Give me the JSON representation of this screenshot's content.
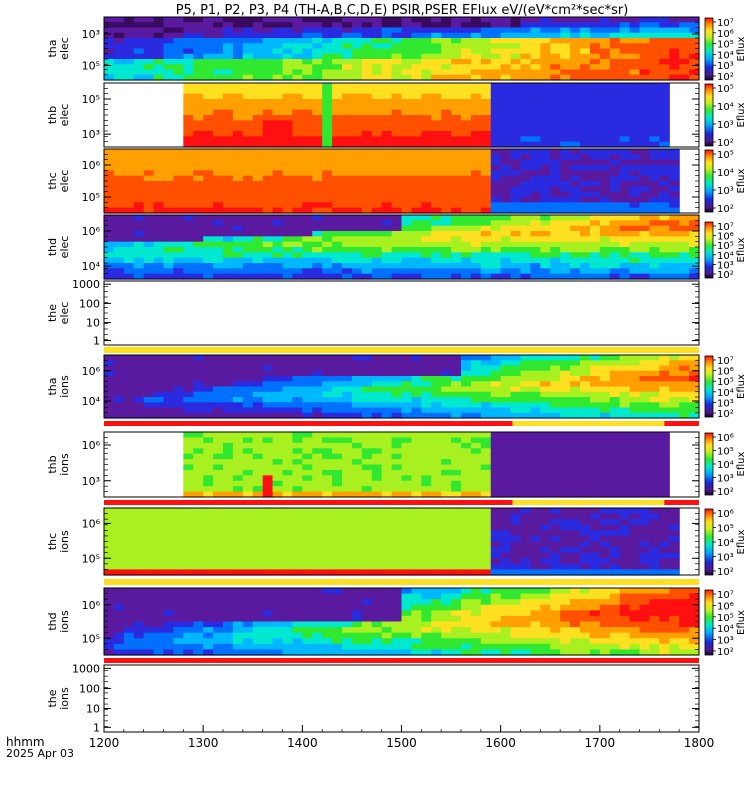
{
  "title": "P5, P1, P2, P3, P4 (TH-A,B,C,D,E) PSIR,PSER EFlux eV/(eV*cm²*sec*sr)",
  "xaxis": {
    "labels_left": [
      "hhmm",
      "2025 Apr 03"
    ],
    "ticks": [
      1200,
      1300,
      1400,
      1500,
      1600,
      1700,
      1800
    ]
  },
  "colorbar_label": "Eflux",
  "chart_data": {
    "type": "heatmap",
    "title": "P5, P1, P2, P3, P4 (TH-A,B,C,D,E) PSIR,PSER EFlux eV/(eV*cm²*sec*sr)",
    "xlabel": "hhmm  2025 Apr 03",
    "xlim": [
      1200,
      1800
    ],
    "xticks": [
      "1200",
      "1300",
      "1400",
      "1500",
      "1600",
      "1700",
      "1800"
    ],
    "panels": [
      {
        "name": "tha elec",
        "label": [
          "tha",
          "elec"
        ],
        "yticks": [
          "10³",
          "10⁵"
        ],
        "cbar": [
          "10⁷",
          "10⁶",
          "10⁵",
          "10⁴",
          "10³",
          "10²"
        ],
        "data": true,
        "note": "low flux (purple/blue) at start, green-yellow rising to orange/red 1680-1790"
      },
      {
        "name": "thb elec",
        "label": [
          "thb",
          "elec"
        ],
        "yticks": [
          "10⁵",
          "10³"
        ],
        "cbar": [
          "10⁵",
          "10⁴",
          "10³",
          "10²"
        ],
        "data": true,
        "note": "no data 1200-1280; yellow/orange/red 1280-1590; purple/blue 1595-1765"
      },
      {
        "name": "thc elec",
        "label": [
          "thc",
          "elec"
        ],
        "yticks": [
          "10⁶",
          "10⁵"
        ],
        "cbar": [
          "10⁵",
          "10⁴",
          "10³",
          "10²"
        ],
        "data": true,
        "note": "yellow/orange/red 1200-1595; purple/blue 1600-1775"
      },
      {
        "name": "thd elec",
        "label": [
          "thd",
          "elec"
        ],
        "yticks": [
          "10⁶",
          "10⁴"
        ],
        "cbar": [
          "10⁷",
          "10⁶",
          "10⁵",
          "10⁴",
          "10³",
          "10²"
        ],
        "data": true,
        "note": "purple/blue background, green-cyan band rising, orange/red near 1780-1800"
      },
      {
        "name": "the elec",
        "label": [
          "the",
          "elec"
        ],
        "yticks": [
          "1000",
          "100",
          "10",
          "1"
        ],
        "cbar": [],
        "data": false
      },
      {
        "name": "tha ions",
        "label": [
          "tha",
          "ions"
        ],
        "yticks": [
          "10⁶",
          "10⁴"
        ],
        "cbar": [
          "10⁷",
          "10⁶",
          "10⁵",
          "10⁴",
          "10³",
          "10²"
        ],
        "data": true,
        "note": "purple at start, blue/cyan rising, green/yellow/orange 1660-1780"
      },
      {
        "name": "thb ions",
        "label": [
          "thb",
          "ions"
        ],
        "yticks": [
          "10⁶",
          "10³"
        ],
        "cbar": [
          "10⁶",
          "10⁵",
          "10⁴",
          "10³",
          "10²"
        ],
        "data": true,
        "note": "no data 1200-1280; green 1280-1590 with red/yellow bin near 1360; purple 1595-1765"
      },
      {
        "name": "thc ions",
        "label": [
          "thc",
          "ions"
        ],
        "yticks": [
          "10⁶",
          "10⁵"
        ],
        "cbar": [
          "10⁶",
          "10⁵",
          "10⁴",
          "10³",
          "10²"
        ],
        "data": true,
        "note": "light green 1200-1595 with orange/red low energy; purple 1600-1775"
      },
      {
        "name": "thd ions",
        "label": [
          "thd",
          "ions"
        ],
        "yticks": [
          "10⁶",
          "10⁵"
        ],
        "cbar": [
          "10⁷",
          "10⁶",
          "10⁵",
          "10⁴",
          "10³",
          "10²"
        ],
        "data": true,
        "note": "purple background, blue/cyan rising, green/yellow/orange/red 1700-1800"
      },
      {
        "name": "the ions",
        "label": [
          "the",
          "ions"
        ],
        "yticks": [
          "1000",
          "100",
          "10",
          "1"
        ],
        "cbar": [],
        "data": false
      }
    ]
  }
}
